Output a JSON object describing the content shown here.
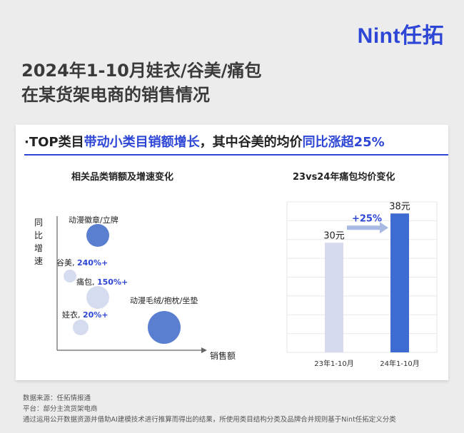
{
  "brand": "Nint任拓",
  "headline": {
    "line1": "2024年1-10月娃衣/谷美/痛包",
    "line2": "在某货架电商的销售情况"
  },
  "card": {
    "title_parts": {
      "prefix": "·TOP类目",
      "hl1": "带动小类目销额增长",
      "middle": "，其中谷美的均价",
      "hl2": "同比涨超25%"
    }
  },
  "colors": {
    "brand_blue": "#2d46d6",
    "bubble_dark": "#5b7fd0",
    "bubble_light": "#d6dcef",
    "bar_2023": "#d5daee",
    "bar_2024": "#3e6bd1",
    "arrow": "#a8b9e4"
  },
  "chart_data": [
    {
      "type": "scatter",
      "title": "相关品类销额及增速变化",
      "xlabel": "销售额",
      "ylabel": "同比增速",
      "points": [
        {
          "name": "动漫徽章/立牌",
          "growth_label": ""
        },
        {
          "name": "谷美",
          "growth_label": "240%+"
        },
        {
          "name": "痛包",
          "growth_label": "150%+"
        },
        {
          "name": "娃衣",
          "growth_label": "20%+"
        },
        {
          "name": "动漫毛绒/抱枕/坐垫",
          "growth_label": ""
        }
      ]
    },
    {
      "type": "bar",
      "title": "23vs24年痛包均价变化",
      "categories": [
        "23年1-10月",
        "24年1-10月"
      ],
      "values": [
        30,
        38
      ],
      "value_labels": [
        "30元",
        "38元"
      ],
      "ylim": [
        0,
        40
      ],
      "annotation": "+25%"
    }
  ],
  "source": {
    "line1": "数据来源：任拓情报通",
    "line2": "平台：部分主流货架电商",
    "line3": "通过运用公开数据资源并借助AI建模技术进行推算而得出的结果，所使用类目结构分类及品牌合并规则基于Nint任拓定义分类"
  }
}
